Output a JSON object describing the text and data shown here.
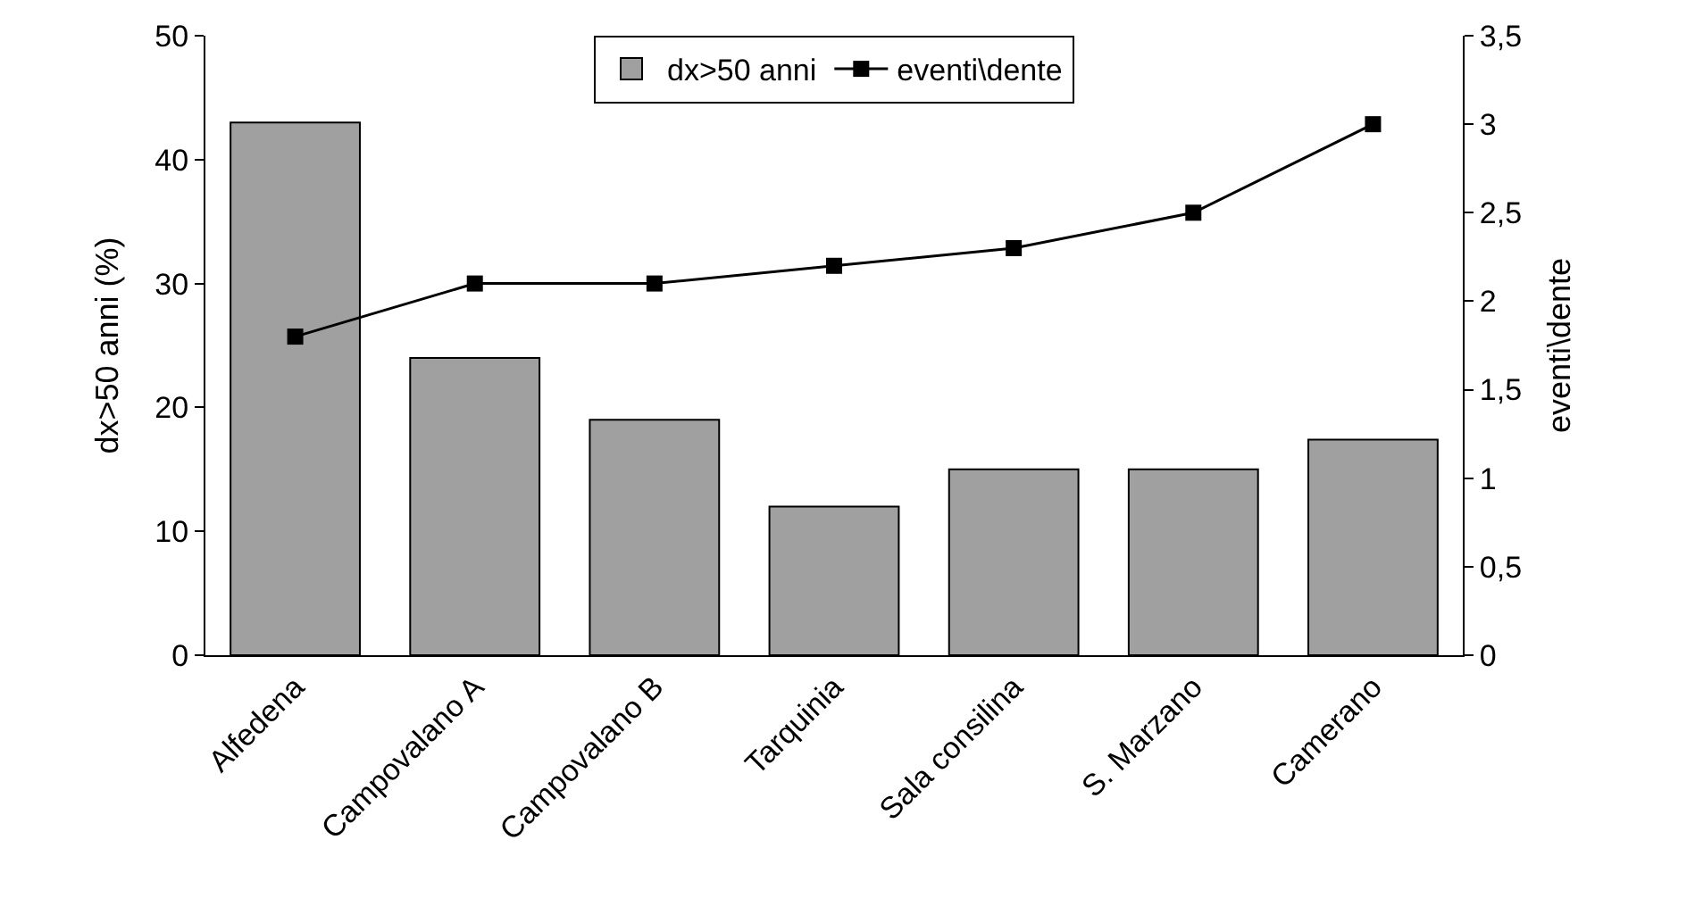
{
  "chart_data": {
    "type": "bar",
    "categories": [
      "Alfedena",
      "Campovalano A",
      "Campovalano B",
      "Tarquinia",
      "Sala consilina",
      "S. Marzano",
      "Camerano"
    ],
    "series": [
      {
        "name": "dx>50 anni",
        "color": "#a0a0a0",
        "values": [
          43,
          24,
          19,
          12,
          15,
          15,
          17.4
        ]
      },
      {
        "name": "eventi\\dente",
        "type": "line",
        "axis": "y2",
        "color": "#000000",
        "marker": "square",
        "values": [
          1.8,
          2.1,
          2.1,
          2.2,
          2.3,
          2.5,
          3.0
        ]
      }
    ],
    "ylabel": "dx>50 anni (%)",
    "y2label": "eventi\\dente",
    "ylim": [
      0,
      50
    ],
    "yticks": [
      0,
      10,
      20,
      30,
      40,
      50
    ],
    "y2lim": [
      0,
      3.5
    ],
    "y2ticks": [
      0,
      {
        "value": 0.5,
        "label": "0,5"
      },
      1,
      {
        "value": 1.5,
        "label": "1,5"
      },
      2,
      {
        "value": 2.5,
        "label": "2,5"
      },
      3,
      {
        "value": 3.5,
        "label": "3,5"
      }
    ],
    "legend": "top"
  }
}
